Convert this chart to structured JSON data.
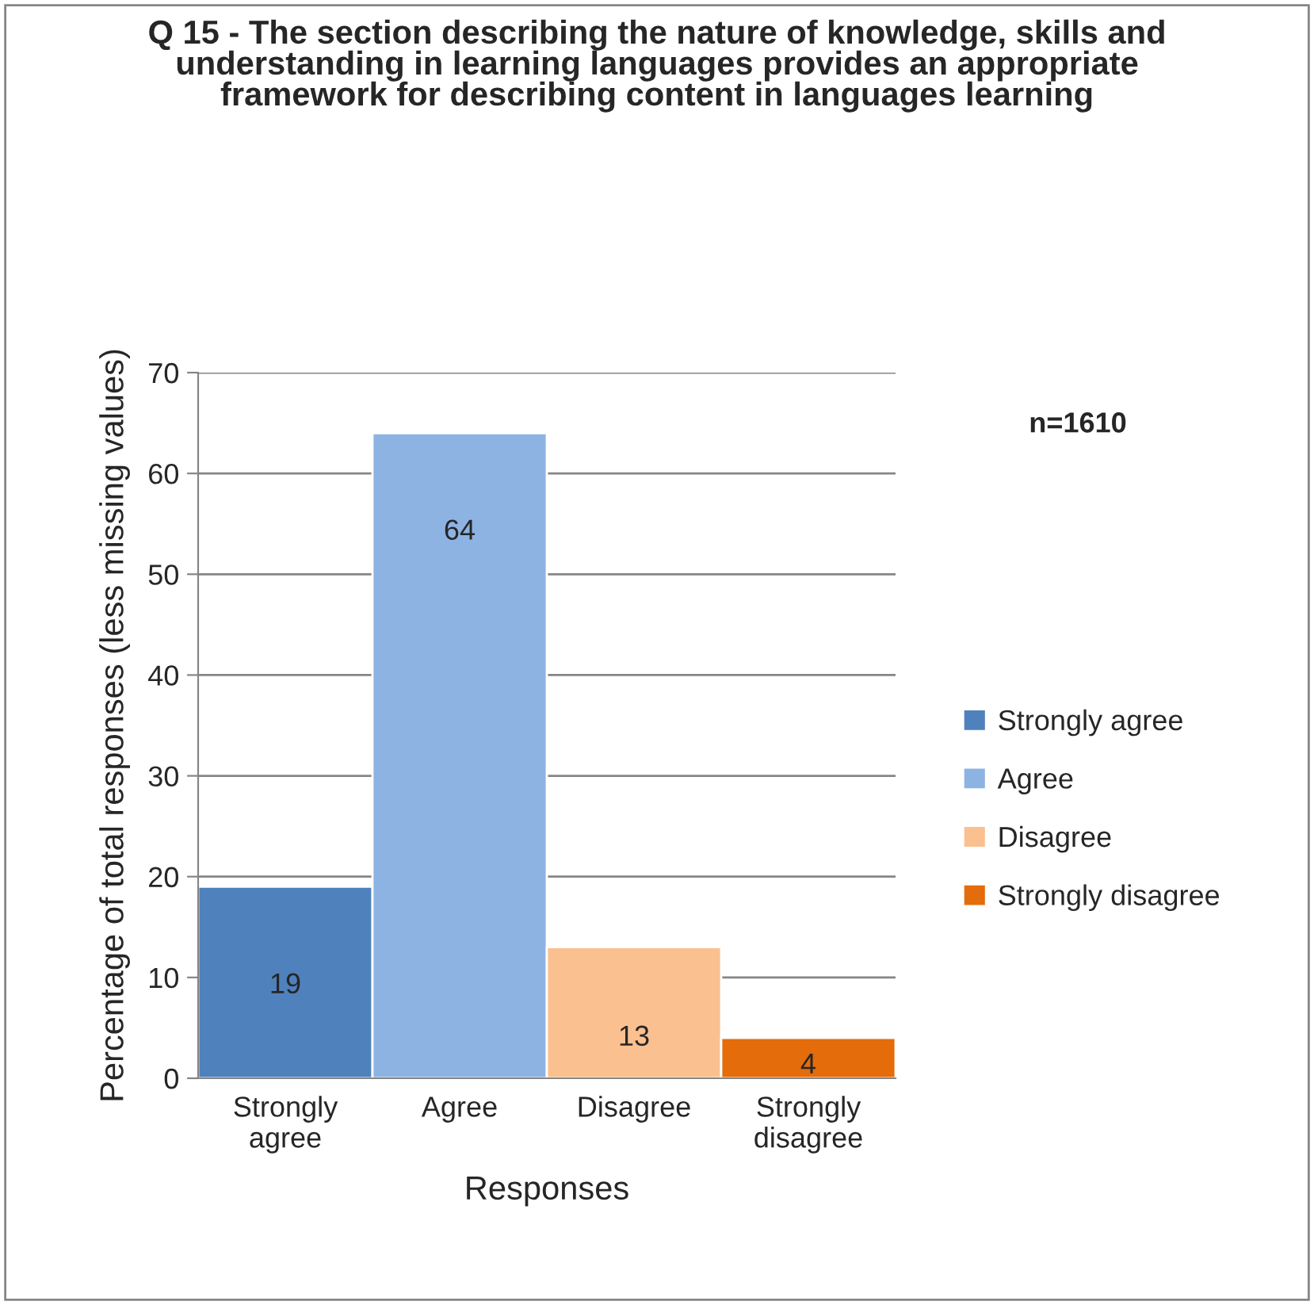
{
  "chart_data": {
    "type": "bar",
    "title": "Q 15 - The section describing the nature of knowledge, skills and understanding in learning languages provides an appropriate framework for describing content in languages learning",
    "xlabel": "Responses",
    "ylabel": "Percentage of total responses (less missing values)",
    "categories": [
      "Strongly agree",
      "Agree",
      "Disagree",
      "Strongly disagree"
    ],
    "series": [
      {
        "name": "Strongly agree",
        "color": "#4f81bd",
        "values": [
          19,
          null,
          null,
          null
        ]
      },
      {
        "name": "Agree",
        "color": "#8db3e2",
        "values": [
          null,
          64,
          null,
          null
        ]
      },
      {
        "name": "Disagree",
        "color": "#fac090",
        "values": [
          null,
          null,
          13,
          null
        ]
      },
      {
        "name": "Strongly disagree",
        "color": "#e46c0a",
        "values": [
          null,
          null,
          null,
          4
        ]
      }
    ],
    "ylim": [
      0,
      70
    ],
    "yticks": [
      0,
      10,
      20,
      30,
      40,
      50,
      60,
      70
    ],
    "grid": "y",
    "legend": "right",
    "data_labels": true,
    "annotations": [
      "n=1610"
    ]
  }
}
